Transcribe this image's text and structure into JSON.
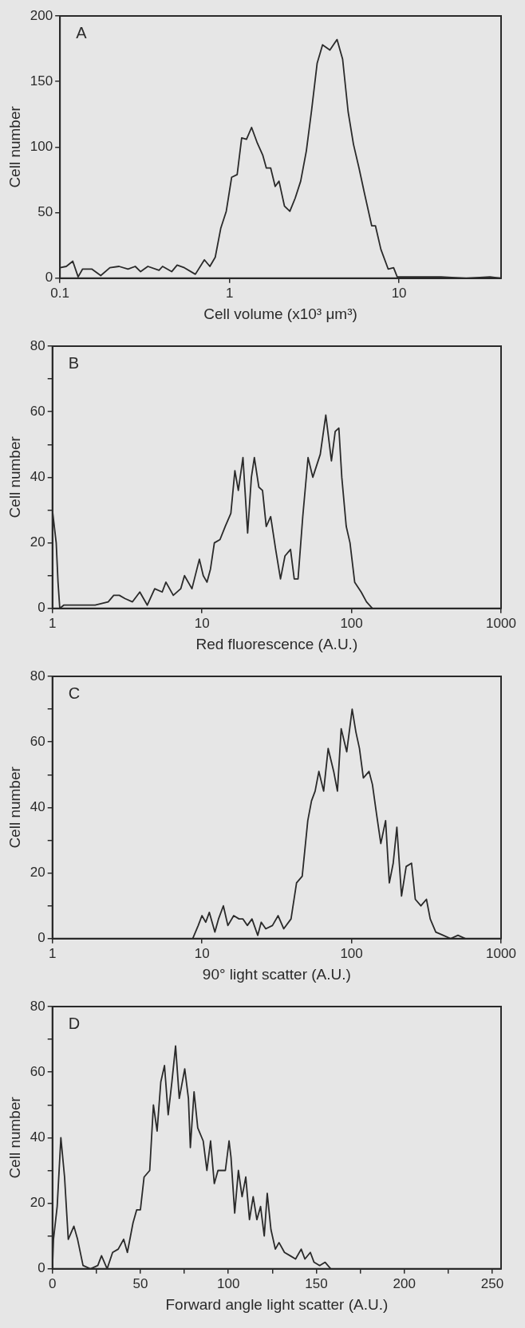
{
  "chart_data": [
    {
      "type": "line",
      "title": "A",
      "xlabel": "Cell volume (x10³ μm³)",
      "ylabel": "Cell number",
      "log": "x",
      "grid": false,
      "color": "#2a2a2a",
      "xlim": [
        0.1,
        40
      ],
      "xticks": [
        0.1,
        1,
        10
      ],
      "ylim": [
        0,
        200
      ],
      "yticks": [
        0,
        50,
        100,
        150,
        200
      ],
      "x": [
        0.1,
        0.109,
        0.119,
        0.128,
        0.136,
        0.154,
        0.174,
        0.197,
        0.223,
        0.252,
        0.278,
        0.299,
        0.33,
        0.384,
        0.403,
        0.456,
        0.491,
        0.542,
        0.629,
        0.711,
        0.766,
        0.824,
        0.888,
        0.957,
        1.03,
        1.11,
        1.18,
        1.26,
        1.35,
        1.46,
        1.57,
        1.65,
        1.75,
        1.86,
        1.96,
        2.11,
        2.27,
        2.44,
        2.63,
        2.84,
        3.05,
        3.29,
        3.54,
        3.91,
        4.31,
        4.65,
        5.01,
        5.39,
        5.81,
        6.25,
        6.9,
        7.26,
        7.82,
        8.63,
        9.29,
        9.76,
        12.5,
        17.7,
        24.9,
        34.4,
        40
      ],
      "values": [
        8,
        9,
        13,
        1,
        7,
        7,
        2,
        8,
        9,
        7,
        9,
        5,
        9,
        6,
        9,
        5,
        10,
        8,
        3,
        14,
        9,
        16,
        38,
        51,
        77,
        79,
        107,
        106,
        115,
        103,
        94,
        84,
        84,
        70,
        74,
        55,
        51,
        61,
        74,
        97,
        128,
        164,
        178,
        174,
        182,
        167,
        127,
        102,
        84,
        65,
        40,
        40,
        22,
        7,
        8,
        1,
        1,
        1,
        0,
        1,
        0
      ]
    },
    {
      "type": "line",
      "title": "B",
      "xlabel": "Red fluorescence (A.U.)",
      "ylabel": "Cell number",
      "log": "x",
      "grid": false,
      "color": "#2a2a2a",
      "xlim": [
        1,
        1000
      ],
      "xticks": [
        1,
        10,
        100,
        1000
      ],
      "ylim": [
        0,
        80
      ],
      "yticks": [
        0,
        {
          "value": 10,
          "label": null
        },
        20,
        {
          "value": 30,
          "label": null
        },
        40,
        {
          "value": 50,
          "label": null
        },
        60,
        {
          "value": 70,
          "label": null
        },
        80
      ],
      "x": [
        1,
        1.06,
        1.09,
        1.12,
        1.19,
        1.37,
        1.67,
        1.93,
        2.36,
        2.57,
        2.8,
        3.06,
        3.43,
        3.84,
        4.31,
        4.83,
        5.42,
        5.74,
        6.43,
        7.21,
        7.64,
        8.57,
        9.61,
        10.2,
        10.8,
        11.4,
        12.1,
        13.2,
        14.3,
        15.6,
        16.6,
        17.5,
        18.8,
        20.2,
        21.4,
        22.4,
        24,
        25.4,
        26.9,
        28.8,
        31.1,
        33.5,
        35.9,
        39.1,
        41.4,
        43.9,
        47.2,
        51.2,
        55.1,
        61.8,
        67.3,
        73.4,
        77.8,
        82.3,
        86.1,
        92.2,
        97.7,
        105,
        116,
        126,
        138
      ],
      "values": [
        30,
        20,
        8,
        0,
        1,
        1,
        1,
        1,
        2,
        4,
        4,
        3,
        2,
        5,
        1,
        6,
        5,
        8,
        4,
        6,
        10,
        6,
        15,
        10,
        8,
        12,
        20,
        21,
        25,
        29,
        42,
        36,
        46,
        23,
        40,
        46,
        37,
        36,
        25,
        28,
        18,
        9,
        16,
        18,
        9,
        9,
        28,
        46,
        40,
        47,
        59,
        45,
        54,
        55,
        40,
        25,
        20,
        8,
        5,
        2,
        0
      ]
    },
    {
      "type": "line",
      "title": "C",
      "xlabel": "90° light scatter (A.U.)",
      "ylabel": "Cell number",
      "log": "x",
      "grid": false,
      "color": "#2a2a2a",
      "xlim": [
        1,
        1000
      ],
      "xticks": [
        1,
        10,
        100,
        1000
      ],
      "ylim": [
        0,
        80
      ],
      "yticks": [
        0,
        {
          "value": 10,
          "label": null
        },
        20,
        {
          "value": 30,
          "label": null
        },
        40,
        {
          "value": 50,
          "label": null
        },
        60,
        {
          "value": 70,
          "label": null
        },
        80
      ],
      "x": [
        1,
        8.67,
        9.44,
        10,
        10.6,
        11.2,
        12.2,
        12.9,
        13.9,
        14.9,
        16.3,
        17.7,
        18.8,
        20.1,
        21.6,
        23.6,
        24.9,
        26.7,
        29.6,
        32.3,
        35.2,
        39.4,
        42.9,
        46.8,
        51,
        54,
        57.1,
        60.5,
        65.1,
        69.8,
        76,
        80.5,
        85.3,
        92.9,
        101,
        107,
        113,
        120,
        131,
        138,
        147,
        157,
        169,
        179,
        190,
        201,
        216,
        232,
        252,
        267,
        291,
        317,
        336,
        366,
        410,
        460,
        515,
        578,
        612,
        1000
      ],
      "values": [
        0,
        0,
        4,
        7,
        5,
        8,
        2,
        6,
        10,
        4,
        7,
        6,
        6,
        4,
        6,
        1,
        5,
        3,
        4,
        7,
        3,
        6,
        17,
        19,
        36,
        42,
        45,
        51,
        45,
        58,
        51,
        45,
        64,
        57,
        70,
        63,
        58,
        49,
        51,
        47,
        38,
        29,
        36,
        17,
        23,
        34,
        13,
        22,
        23,
        12,
        10,
        12,
        6,
        2,
        1,
        0,
        1,
        0,
        0,
        0
      ]
    },
    {
      "type": "line",
      "title": "D",
      "xlabel": "Forward angle light scatter (A.U.)",
      "ylabel": "Cell number",
      "grid": false,
      "color": "#2a2a2a",
      "xlim": [
        0,
        255
      ],
      "xticks": [
        0,
        {
          "value": 25,
          "label": null
        },
        50,
        {
          "value": 75,
          "label": null
        },
        100,
        {
          "value": 125,
          "label": null
        },
        150,
        {
          "value": 175,
          "label": null
        },
        200,
        {
          "value": 225,
          "label": null
        },
        250
      ],
      "ylim": [
        0,
        80
      ],
      "yticks": [
        0,
        {
          "value": 10,
          "label": null
        },
        20,
        {
          "value": 30,
          "label": null
        },
        40,
        {
          "value": 50,
          "label": null
        },
        60,
        {
          "value": 70,
          "label": null
        },
        80
      ],
      "x": [
        0,
        0.6,
        2.7,
        4.8,
        6.9,
        9,
        12.2,
        14.3,
        17.4,
        21.6,
        25.8,
        27.9,
        31.1,
        34.2,
        37.4,
        40.5,
        42.6,
        45.8,
        47.9,
        50,
        52.1,
        55.3,
        57.4,
        59.5,
        61.6,
        63.7,
        65.8,
        67.9,
        70,
        72.1,
        75.2,
        77.3,
        78.4,
        80.5,
        82.6,
        85.7,
        87.8,
        89.9,
        92,
        94.1,
        98.3,
        100.4,
        101.5,
        103.6,
        105.7,
        107.8,
        109.9,
        112,
        114.1,
        116.2,
        118.3,
        120.4,
        122.1,
        124.2,
        126.7,
        128.8,
        131.9,
        135.1,
        138.2,
        141.4,
        143.5,
        146.6,
        148.7,
        151.9,
        155,
        158.2
      ],
      "values": [
        0,
        9,
        19,
        40,
        28,
        9,
        13,
        9,
        1,
        0,
        1,
        4,
        0,
        5,
        6,
        9,
        5,
        14,
        18,
        18,
        28,
        30,
        50,
        42,
        57,
        62,
        47,
        57,
        68,
        52,
        61,
        52,
        37,
        54,
        43,
        39,
        30,
        39,
        26,
        30,
        30,
        39,
        34,
        17,
        30,
        22,
        28,
        15,
        22,
        15,
        19,
        10,
        23,
        12,
        6,
        8,
        5,
        4,
        3,
        6,
        3,
        5,
        2,
        1,
        2,
        0
      ]
    }
  ]
}
